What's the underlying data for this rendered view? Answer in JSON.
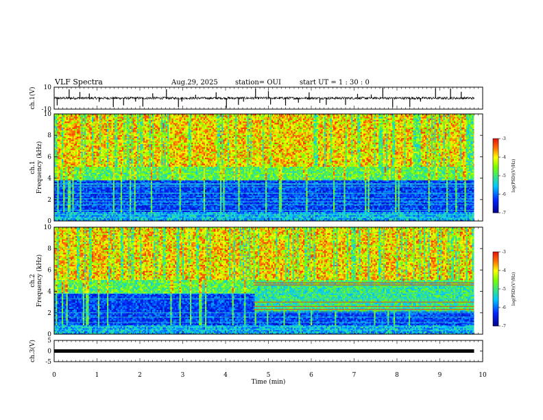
{
  "header": {
    "title": "VLF Spectra",
    "date": "Aug.29, 2025",
    "station": "station= OUI",
    "start": "start  UT =   1 : 30 : 0"
  },
  "chart_data": [
    {
      "type": "line",
      "panel": "ch1-waveform",
      "ylabel": "ch.1(V)",
      "ylim": [
        -10,
        10
      ],
      "yticks": [
        "10",
        "-10"
      ],
      "xlim": [
        0,
        10
      ],
      "baseline": 0,
      "duration_min": 9.8,
      "spike_times_min": [
        0.07,
        0.35,
        0.6,
        0.82,
        1.05,
        1.38,
        1.62,
        1.9,
        2.07,
        2.3,
        2.62,
        2.9,
        2.98,
        3.3,
        3.78,
        4.02,
        4.3,
        4.42,
        4.7,
        5.0,
        5.05,
        5.4,
        5.7,
        5.95,
        6.2,
        6.35,
        6.8,
        7.08,
        7.4,
        7.67,
        7.9,
        8.3,
        8.55,
        8.9,
        9.25,
        9.5
      ],
      "color": "#000000"
    },
    {
      "type": "heatmap",
      "panel": "ch1-spectrogram",
      "ylabel": "ch.1\nFrequency (kHz)",
      "ylim": [
        0,
        10
      ],
      "yticks": [
        "0",
        "2",
        "4",
        "6",
        "8",
        "10"
      ],
      "xlim": [
        0,
        10
      ],
      "duration_min": 9.8,
      "colorbar": {
        "label": "log(PSD)(V²/Hz)",
        "range": [
          -7,
          -3
        ],
        "ticks": [
          "-3",
          "-4",
          "-5",
          "-6",
          "-7"
        ]
      },
      "line_freqs_khz": [
        0.3,
        0.6,
        1.0,
        1.5,
        1.8,
        2.1,
        2.6,
        3.2,
        3.4,
        3.5
      ]
    },
    {
      "type": "heatmap",
      "panel": "ch2-spectrogram",
      "ylabel": "ch.2\nFrequency (kHz)",
      "ylim": [
        0,
        10
      ],
      "yticks": [
        "0",
        "2",
        "4",
        "6",
        "8",
        "10"
      ],
      "xlim": [
        0,
        10
      ],
      "duration_min": 9.8,
      "colorbar": {
        "label": "log(PSD)(V²/Hz)",
        "range": [
          -7,
          -3
        ],
        "ticks": [
          "-3",
          "-4",
          "-5",
          "-6",
          "-7"
        ]
      },
      "event_start_min": 4.65,
      "event_lines_khz": [
        2.3,
        2.6,
        3.0,
        4.6,
        4.8
      ],
      "line_freqs_khz": [
        0.4,
        0.7,
        1.1,
        1.6,
        2.0,
        3.3,
        3.8
      ]
    },
    {
      "type": "line",
      "panel": "ch3-waveform",
      "ylabel": "ch.3(V)",
      "ylim": [
        -5,
        5
      ],
      "yticks": [
        "5",
        "0",
        "-5"
      ],
      "xlim": [
        0,
        10
      ],
      "xticks": [
        "0",
        "1",
        "2",
        "3",
        "4",
        "5",
        "6",
        "7",
        "8",
        "9",
        "10"
      ],
      "xlabel": "Time (min)",
      "level": 0,
      "duration_min": 9.8,
      "color": "#000000"
    }
  ]
}
